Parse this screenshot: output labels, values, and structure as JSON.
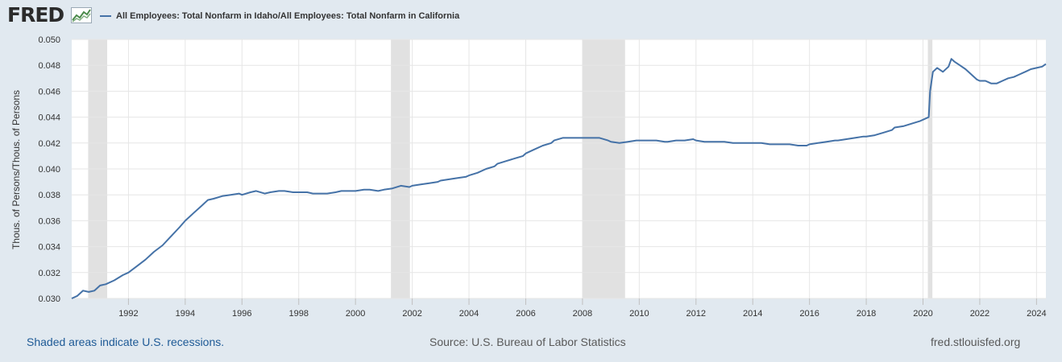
{
  "header": {
    "logo": "FRED",
    "logo_icon": "line-chart-icon",
    "series_title": "All Employees: Total Nonfarm in Idaho/All Employees: Total Nonfarm in California"
  },
  "chart_data": {
    "type": "line",
    "title": "All Employees: Total Nonfarm in Idaho/All Employees: Total Nonfarm in California",
    "ylabel": "Thous. of Persons/Thous. of Persons",
    "xlabel": "",
    "xlim": [
      1990,
      2024.33
    ],
    "ylim": [
      0.03,
      0.05
    ],
    "yticks": [
      "0.030",
      "0.032",
      "0.034",
      "0.036",
      "0.038",
      "0.040",
      "0.042",
      "0.044",
      "0.046",
      "0.048",
      "0.050"
    ],
    "xticks": [
      "1992",
      "1994",
      "1996",
      "1998",
      "2000",
      "2002",
      "2004",
      "2006",
      "2008",
      "2010",
      "2012",
      "2014",
      "2016",
      "2018",
      "2020",
      "2022",
      "2024"
    ],
    "grid": true,
    "legend_position": "top-left",
    "line_color": "#4572a7",
    "recession_color": "#e1e1e1",
    "recessions": [
      [
        1990.58,
        1991.25
      ],
      [
        2001.25,
        2001.92
      ],
      [
        2008.0,
        2009.5
      ],
      [
        2020.17,
        2020.33
      ]
    ],
    "series": [
      {
        "name": "All Employees: Total Nonfarm in Idaho/All Employees: Total Nonfarm in California",
        "x": [
          1990.0,
          1990.2,
          1990.4,
          1990.6,
          1990.8,
          1991.0,
          1991.2,
          1991.5,
          1991.8,
          1992.0,
          1992.3,
          1992.6,
          1992.9,
          1993.2,
          1993.5,
          1993.8,
          1994.0,
          1994.3,
          1994.6,
          1994.8,
          1995.0,
          1995.3,
          1995.6,
          1995.9,
          1996.0,
          1996.3,
          1996.5,
          1996.8,
          1997.0,
          1997.3,
          1997.5,
          1997.8,
          1998.0,
          1998.3,
          1998.5,
          1998.8,
          1999.0,
          1999.3,
          1999.5,
          1999.8,
          2000.0,
          2000.3,
          2000.5,
          2000.8,
          2001.0,
          2001.3,
          2001.6,
          2001.9,
          2002.0,
          2002.3,
          2002.6,
          2002.9,
          2003.0,
          2003.3,
          2003.6,
          2003.9,
          2004.0,
          2004.3,
          2004.6,
          2004.9,
          2005.0,
          2005.3,
          2005.6,
          2005.9,
          2006.0,
          2006.3,
          2006.6,
          2006.9,
          2007.0,
          2007.3,
          2007.6,
          2007.9,
          2008.0,
          2008.3,
          2008.6,
          2008.9,
          2009.0,
          2009.3,
          2009.6,
          2009.9,
          2010.0,
          2010.3,
          2010.6,
          2010.9,
          2011.0,
          2011.3,
          2011.6,
          2011.9,
          2012.0,
          2012.3,
          2012.6,
          2012.9,
          2013.0,
          2013.3,
          2013.6,
          2013.9,
          2014.0,
          2014.3,
          2014.6,
          2014.9,
          2015.0,
          2015.3,
          2015.6,
          2015.9,
          2016.0,
          2016.3,
          2016.6,
          2016.9,
          2017.0,
          2017.3,
          2017.6,
          2017.9,
          2018.0,
          2018.3,
          2018.6,
          2018.9,
          2019.0,
          2019.3,
          2019.6,
          2019.9,
          2020.0,
          2020.2,
          2020.25,
          2020.35,
          2020.5,
          2020.7,
          2020.9,
          2021.0,
          2021.1,
          2021.3,
          2021.5,
          2021.7,
          2021.9,
          2022.0,
          2022.2,
          2022.4,
          2022.6,
          2022.8,
          2023.0,
          2023.2,
          2023.4,
          2023.6,
          2023.8,
          2024.0,
          2024.2,
          2024.33
        ],
        "values": [
          0.03,
          0.0302,
          0.0306,
          0.0305,
          0.0306,
          0.031,
          0.0311,
          0.0314,
          0.0318,
          0.032,
          0.0325,
          0.033,
          0.0336,
          0.0341,
          0.0348,
          0.0355,
          0.036,
          0.0366,
          0.0372,
          0.0376,
          0.0377,
          0.0379,
          0.038,
          0.0381,
          0.038,
          0.0382,
          0.0383,
          0.0381,
          0.0382,
          0.0383,
          0.0383,
          0.0382,
          0.0382,
          0.0382,
          0.0381,
          0.0381,
          0.0381,
          0.0382,
          0.0383,
          0.0383,
          0.0383,
          0.0384,
          0.0384,
          0.0383,
          0.0384,
          0.0385,
          0.0387,
          0.0386,
          0.0387,
          0.0388,
          0.0389,
          0.039,
          0.0391,
          0.0392,
          0.0393,
          0.0394,
          0.0395,
          0.0397,
          0.04,
          0.0402,
          0.0404,
          0.0406,
          0.0408,
          0.041,
          0.0412,
          0.0415,
          0.0418,
          0.042,
          0.0422,
          0.0424,
          0.0424,
          0.0424,
          0.0424,
          0.0424,
          0.0424,
          0.0422,
          0.0421,
          0.042,
          0.0421,
          0.0422,
          0.0422,
          0.0422,
          0.0422,
          0.0421,
          0.0421,
          0.0422,
          0.0422,
          0.0423,
          0.0422,
          0.0421,
          0.0421,
          0.0421,
          0.0421,
          0.042,
          0.042,
          0.042,
          0.042,
          0.042,
          0.0419,
          0.0419,
          0.0419,
          0.0419,
          0.0418,
          0.0418,
          0.0419,
          0.042,
          0.0421,
          0.0422,
          0.0422,
          0.0423,
          0.0424,
          0.0425,
          0.0425,
          0.0426,
          0.0428,
          0.043,
          0.0432,
          0.0433,
          0.0435,
          0.0437,
          0.0438,
          0.044,
          0.046,
          0.0475,
          0.0478,
          0.0475,
          0.0479,
          0.0485,
          0.0483,
          0.048,
          0.0477,
          0.0473,
          0.0469,
          0.0468,
          0.0468,
          0.0466,
          0.0466,
          0.0468,
          0.047,
          0.0471,
          0.0473,
          0.0475,
          0.0477,
          0.0478,
          0.0479,
          0.0481
        ]
      }
    ]
  },
  "footer": {
    "note": "Shaded areas indicate U.S. recessions.",
    "source": "Source: U.S. Bureau of Labor Statistics",
    "site": "fred.stlouisfed.org"
  }
}
